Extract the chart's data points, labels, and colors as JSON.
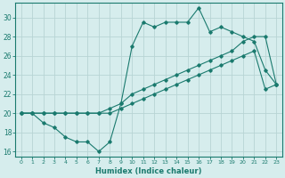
{
  "xlabel": "Humidex (Indice chaleur)",
  "ylabel": "",
  "xlim": [
    -0.5,
    23.5
  ],
  "ylim": [
    15.5,
    31.5
  ],
  "xticks": [
    0,
    1,
    2,
    3,
    4,
    5,
    6,
    7,
    8,
    9,
    10,
    11,
    12,
    13,
    14,
    15,
    16,
    17,
    18,
    19,
    20,
    21,
    22,
    23
  ],
  "yticks": [
    16,
    18,
    20,
    22,
    24,
    26,
    28,
    30
  ],
  "bg_color": "#d6eded",
  "line_color": "#1a7a6e",
  "grid_color": "#b8d4d4",
  "line1_x": [
    0,
    1,
    2,
    3,
    4,
    5,
    6,
    7,
    8,
    9,
    10,
    11,
    12,
    13,
    14,
    15,
    16,
    17,
    18,
    19,
    20,
    21,
    22,
    23
  ],
  "line1_y": [
    20,
    20,
    19,
    18.5,
    17.5,
    17,
    17,
    16,
    17,
    21,
    27,
    29.5,
    29,
    29.5,
    29.5,
    29.5,
    31,
    28.5,
    29,
    28.5,
    28,
    27.5,
    24.5,
    23
  ],
  "line2_x": [
    0,
    1,
    2,
    3,
    4,
    5,
    6,
    7,
    8,
    9,
    10,
    11,
    12,
    13,
    14,
    15,
    16,
    17,
    18,
    19,
    20,
    21,
    22,
    23
  ],
  "line2_y": [
    20,
    20,
    20,
    20,
    20,
    20,
    20,
    20,
    20.5,
    21,
    22,
    22.5,
    23,
    23.5,
    24,
    24.5,
    25,
    25.5,
    26,
    26.5,
    27.5,
    28,
    28,
    23
  ],
  "line3_x": [
    0,
    1,
    2,
    3,
    4,
    5,
    6,
    7,
    8,
    9,
    10,
    11,
    12,
    13,
    14,
    15,
    16,
    17,
    18,
    19,
    20,
    21,
    22,
    23
  ],
  "line3_y": [
    20,
    20,
    20,
    20,
    20,
    20,
    20,
    20,
    20,
    20.5,
    21,
    21.5,
    22,
    22.5,
    23,
    23.5,
    24,
    24.5,
    25,
    25.5,
    26,
    26.5,
    22.5,
    23
  ]
}
